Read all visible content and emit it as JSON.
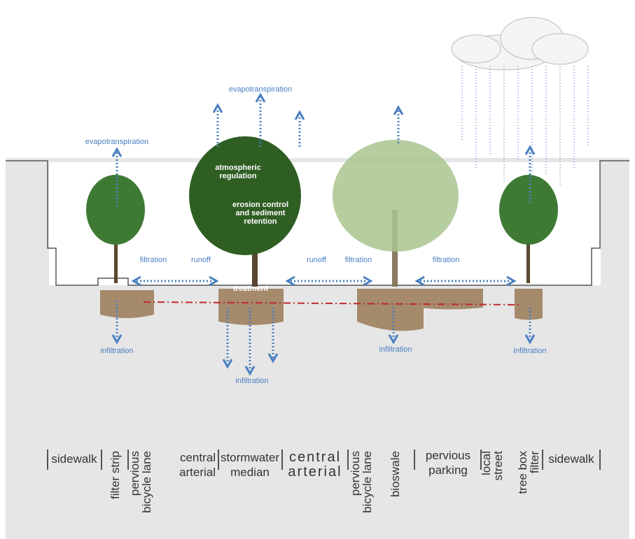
{
  "annotations": [
    {
      "text": "evapotranspiration"
    },
    {
      "text": "evapotranspiration"
    },
    {
      "text": "atmospheric regulation"
    },
    {
      "text": "erosion control and sediment retention"
    },
    {
      "text": "filtration"
    },
    {
      "text": "runoff"
    },
    {
      "text": "runoff"
    },
    {
      "text": "filtration"
    },
    {
      "text": "filtration"
    },
    {
      "text": "treatment"
    },
    {
      "text": "infiltration"
    },
    {
      "text": "infiltration"
    },
    {
      "text": "infiltration"
    },
    {
      "text": "infiltration"
    }
  ],
  "zones": [
    {
      "lines": [
        "sidewalk"
      ]
    },
    {
      "lines": [
        "filter strip"
      ]
    },
    {
      "lines": [
        "pervious",
        "bicycle lane"
      ]
    },
    {
      "lines": [
        "central",
        "arterial"
      ]
    },
    {
      "lines": [
        "stormwater",
        "median"
      ]
    },
    {
      "lines": [
        "central",
        "arterial"
      ]
    },
    {
      "lines": [
        "pervious",
        "bicycle lane"
      ]
    },
    {
      "lines": [
        "bioswale"
      ]
    },
    {
      "lines": [
        "pervious",
        "parking"
      ]
    },
    {
      "lines": [
        "local",
        "street"
      ]
    },
    {
      "lines": [
        "tree box",
        "filter"
      ]
    },
    {
      "lines": [
        "sidewalk"
      ]
    }
  ]
}
